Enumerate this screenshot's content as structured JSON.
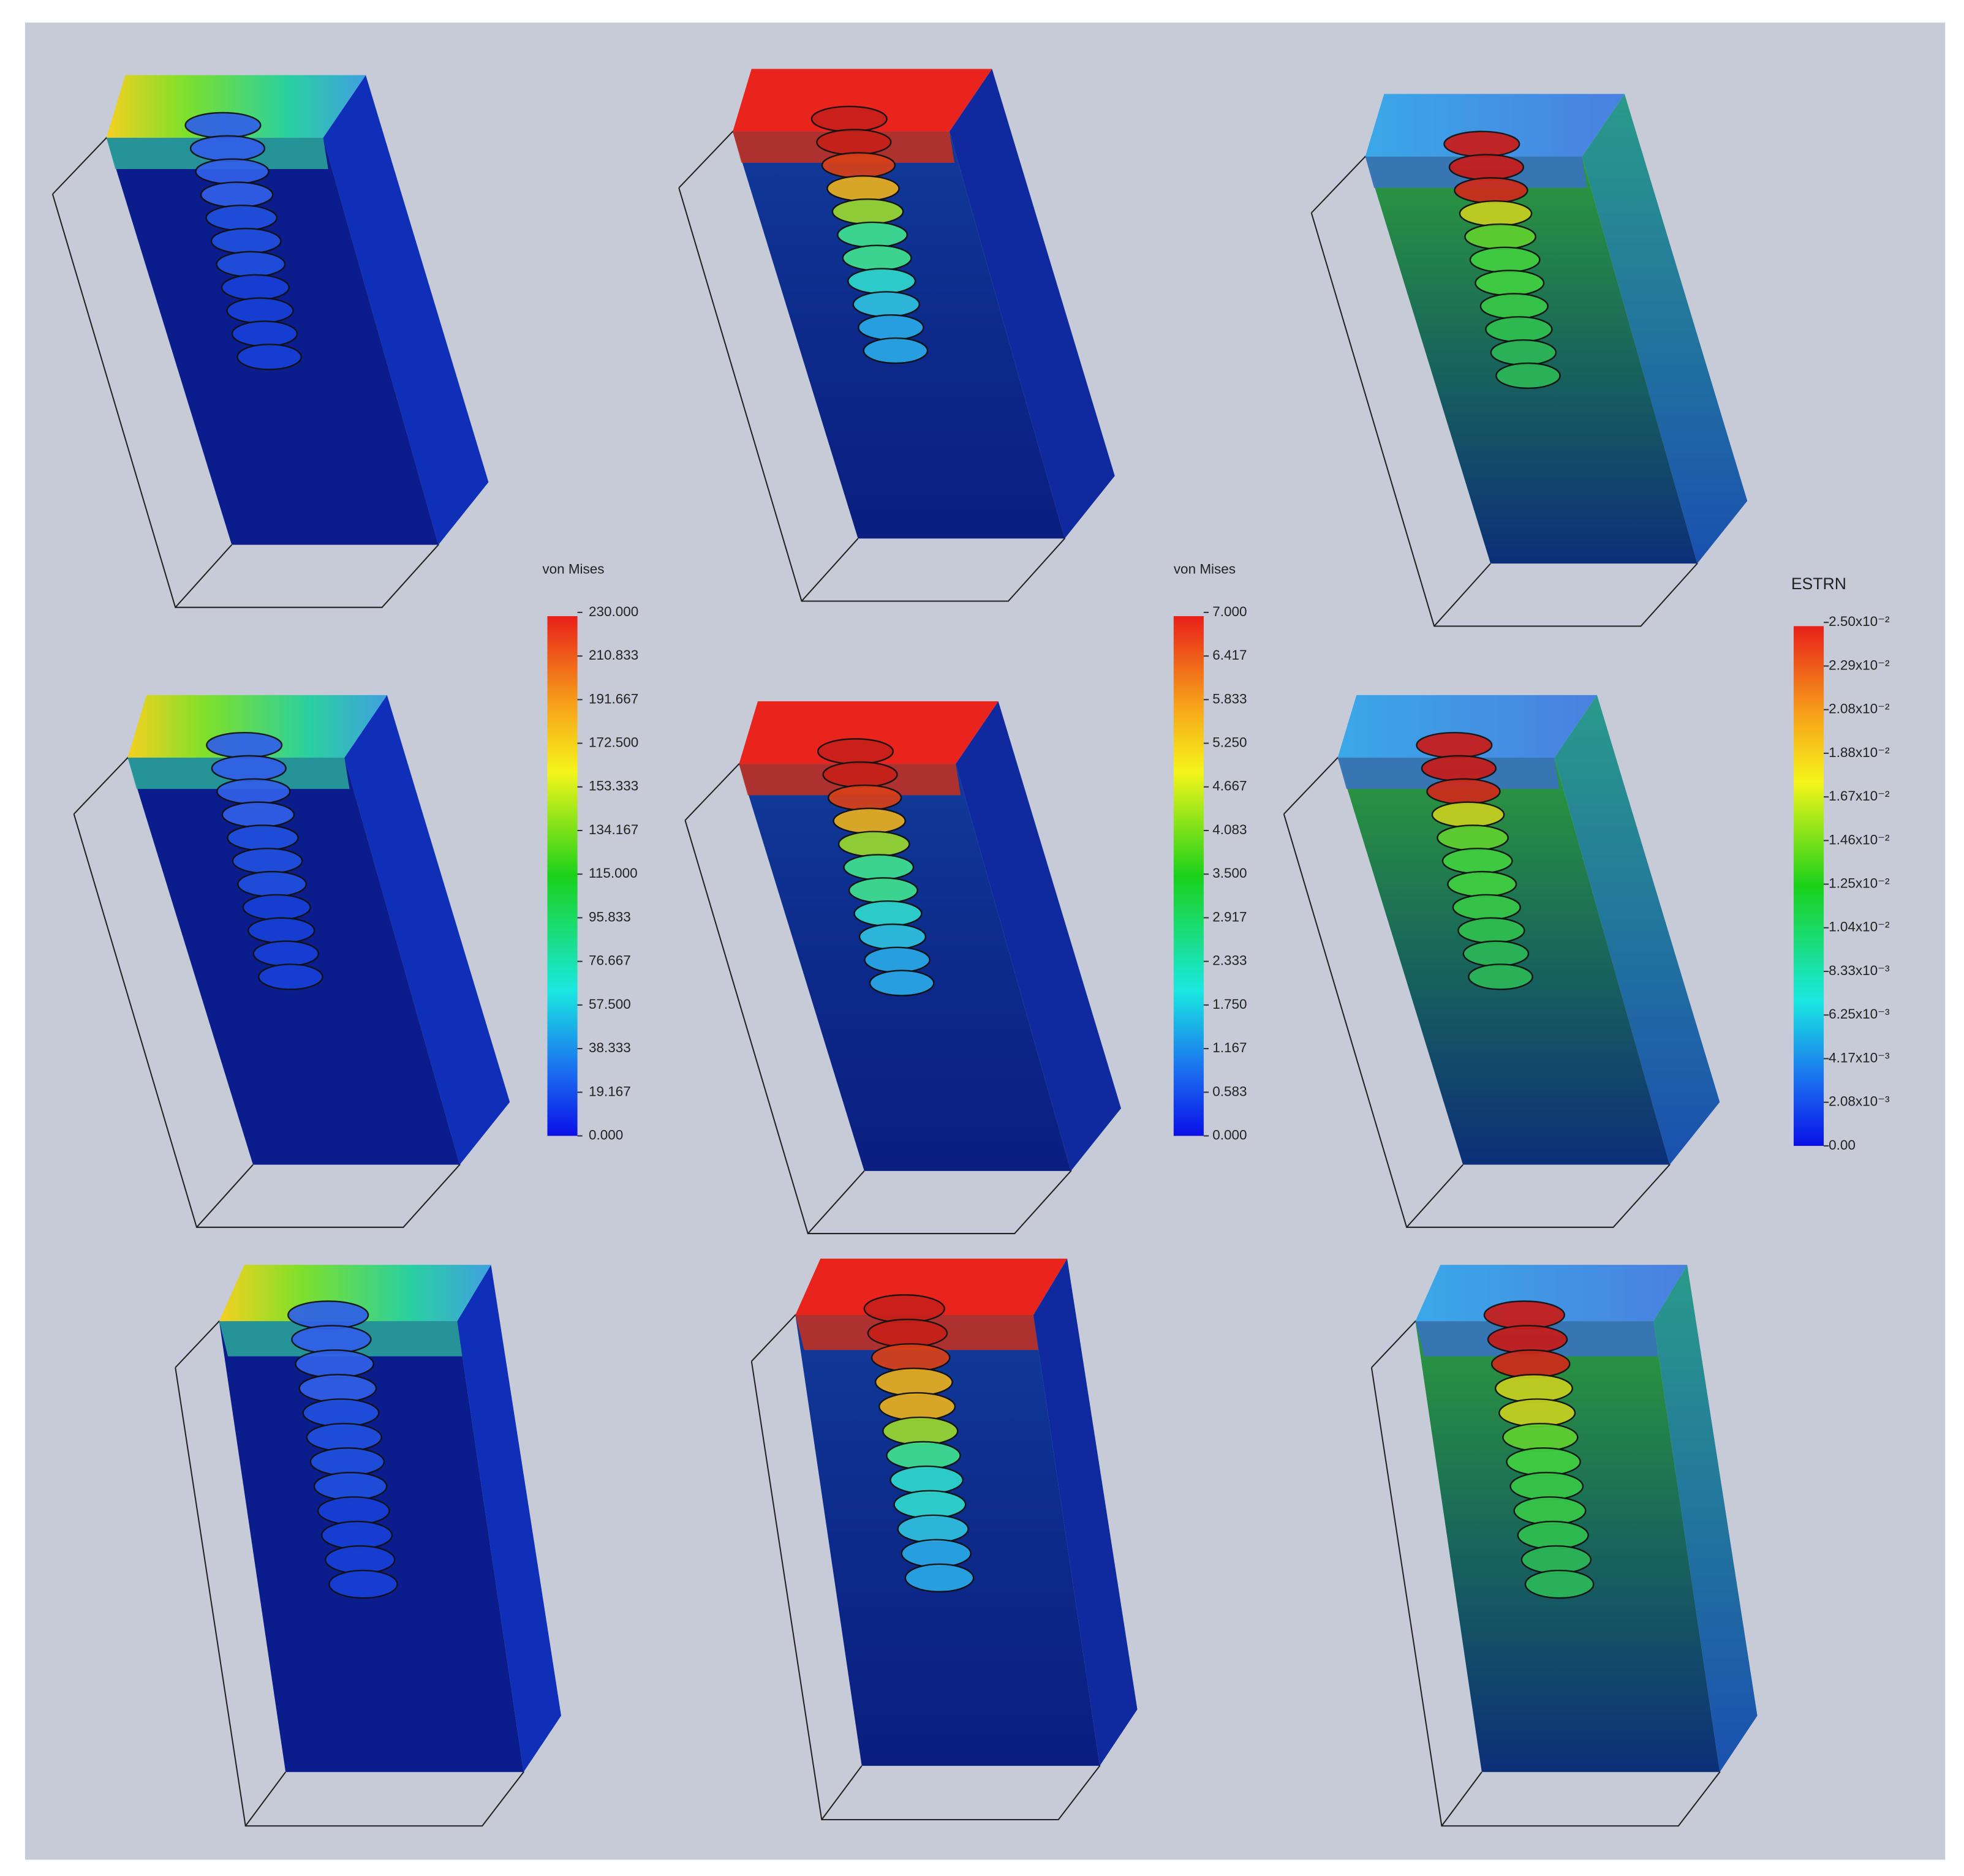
{
  "legends": [
    {
      "title": "von Mises",
      "labels": [
        "230.000",
        "210.833",
        "191.667",
        "172.500",
        "153.333",
        "134.167",
        "115.000",
        "95.833",
        "76.667",
        "57.500",
        "38.333",
        "19.167",
        "0.000"
      ]
    },
    {
      "title": "von Mises",
      "labels": [
        "7.000",
        "6.417",
        "5.833",
        "5.250",
        "4.667",
        "4.083",
        "3.500",
        "2.917",
        "2.333",
        "1.750",
        "1.167",
        "0.583",
        "0.000"
      ]
    },
    {
      "title": "ESTRN",
      "labels": [
        "2.50x10⁻²",
        "2.29x10⁻²",
        "2.08x10⁻²",
        "1.88x10⁻²",
        "1.67x10⁻²",
        "1.46x10⁻²",
        "1.25x10⁻²",
        "1.04x10⁻²",
        "8.33x10⁻³",
        "6.25x10⁻³",
        "4.17x10⁻³",
        "2.08x10⁻³",
        "0.00"
      ]
    }
  ]
}
